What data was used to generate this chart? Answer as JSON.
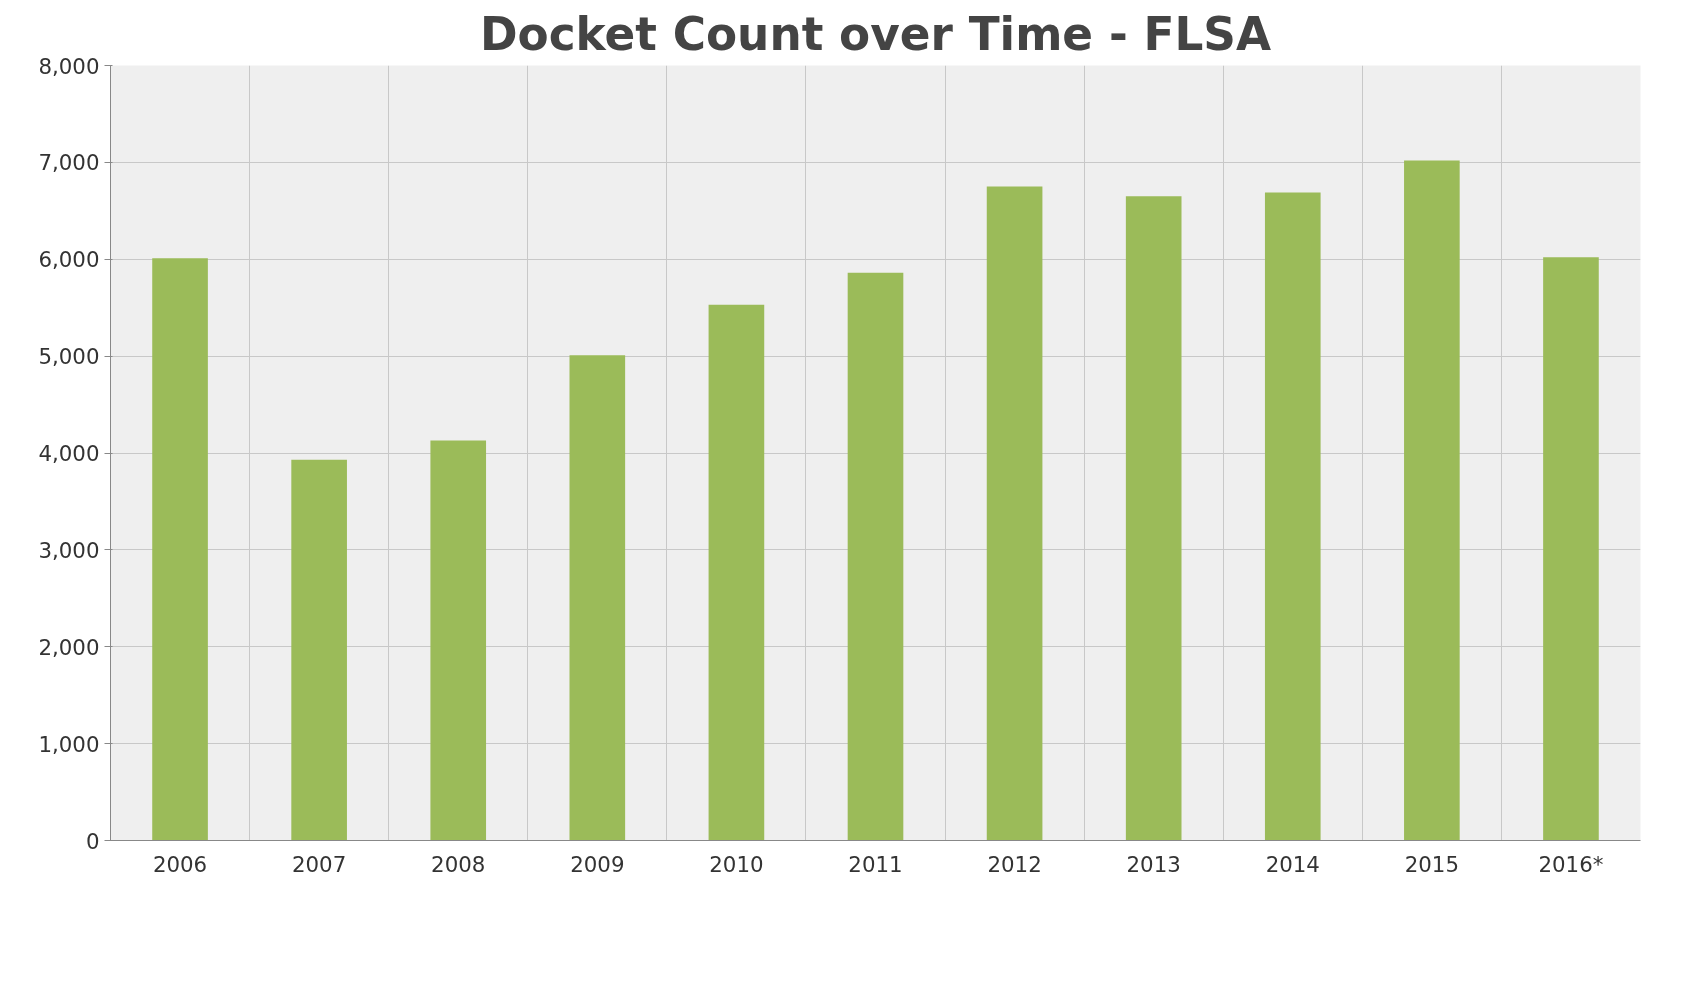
{
  "chart_data": {
    "type": "bar",
    "title": "Docket Count over Time - FLSA",
    "categories": [
      "2006",
      "2007",
      "2008",
      "2009",
      "2010",
      "2011",
      "2012",
      "2013",
      "2014",
      "2015",
      "2016*"
    ],
    "values": [
      6010,
      3930,
      4130,
      5010,
      5530,
      5860,
      6750,
      6650,
      6690,
      7020,
      6020
    ],
    "color": "#9bbb59",
    "ylim": [
      0,
      8000
    ],
    "yticks": [
      {
        "value": 0,
        "label": "0"
      },
      {
        "value": 1000,
        "label": "1,000"
      },
      {
        "value": 2000,
        "label": "2,000"
      },
      {
        "value": 3000,
        "label": "3,000"
      },
      {
        "value": 4000,
        "label": "4,000"
      },
      {
        "value": 5000,
        "label": "5,000"
      },
      {
        "value": 6000,
        "label": "6,000"
      },
      {
        "value": 7000,
        "label": "7,000"
      },
      {
        "value": 8000,
        "label": "8,000"
      }
    ],
    "grid": true
  }
}
